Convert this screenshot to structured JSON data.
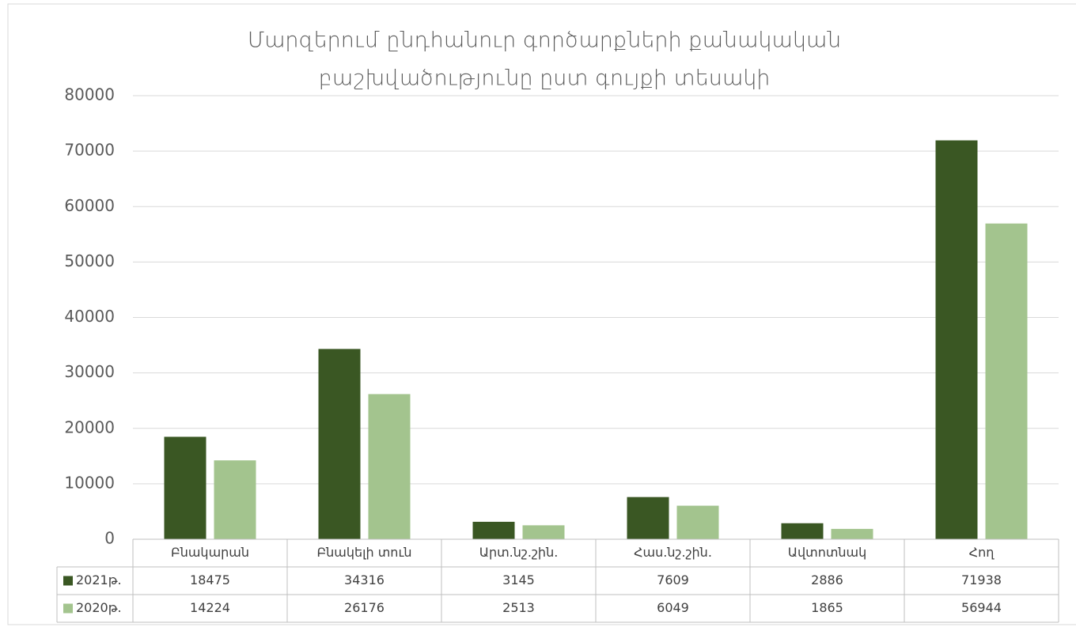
{
  "chart_data": {
    "type": "bar",
    "title": [
      "Մարզերում ընդհանուր գործարքների քանակական",
      "բաշխվածությունը ըստ գույքի տեսակի"
    ],
    "categories": [
      "Բնակարան",
      "Բնակելի տուն",
      "Արտ.նշ.շին.",
      "Հաս.նշ.շին.",
      "Ավտոտնակ",
      "Հող"
    ],
    "series": [
      {
        "name": "2021թ.",
        "color": "#3a5723",
        "values": [
          18475,
          34316,
          3145,
          7609,
          2886,
          71938
        ]
      },
      {
        "name": "2020թ.",
        "color": "#a3c48e",
        "values": [
          14224,
          26176,
          2513,
          6049,
          1865,
          56944
        ]
      }
    ],
    "ylim": [
      0,
      80000
    ],
    "yticks": [
      0,
      10000,
      20000,
      30000,
      40000,
      50000,
      60000,
      70000,
      80000
    ],
    "grid": true,
    "data_table": true
  }
}
